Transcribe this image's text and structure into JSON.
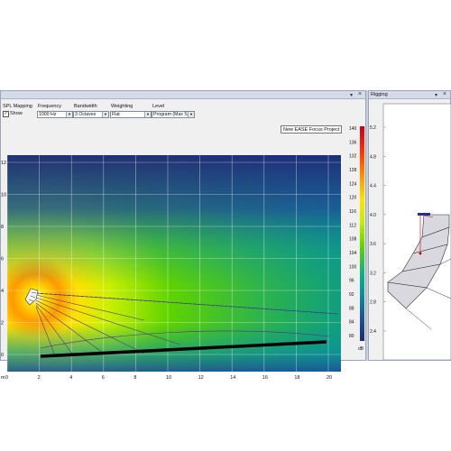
{
  "main": {
    "controls": {
      "spl_mapping_label": "SPL Mapping",
      "show_label": "Show",
      "show_checked": true,
      "frequency_label": "Frequency",
      "frequency_value": "1000 Hz",
      "bandwidth_label": "Bandwidth",
      "bandwidth_value": "3 Octaves",
      "weighting_label": "Weighting",
      "weighting_value": "Flat",
      "level_label": "Level",
      "level_value": "Program (Max SF"
    },
    "project_label": "New EASE Focus Project",
    "y_axis_ticks": [
      "12",
      "10",
      "8",
      "6",
      "4",
      "2",
      "0"
    ],
    "x_axis_ticks": [
      "0",
      "2",
      "4",
      "6",
      "8",
      "10",
      "12",
      "14",
      "16",
      "18",
      "20"
    ],
    "x_axis_unit": "m",
    "color_scale": {
      "ticks": [
        "140",
        "136",
        "132",
        "128",
        "124",
        "120",
        "116",
        "112",
        "108",
        "104",
        "100",
        "96",
        "92",
        "88",
        "84",
        "80"
      ],
      "unit": "dB",
      "colors": [
        "#c6001a",
        "#ff3300",
        "#ff9a00",
        "#ffe000",
        "#c8f000",
        "#5fd300",
        "#0fb37a",
        "#0a8f9e",
        "#1b4f9a",
        "#202878"
      ]
    }
  },
  "rigging": {
    "title": "Rigging",
    "y_axis_ticks": [
      "5.2",
      "4.8",
      "4.4",
      "4.0",
      "3.6",
      "3.2",
      "2.8",
      "2.4"
    ]
  }
}
